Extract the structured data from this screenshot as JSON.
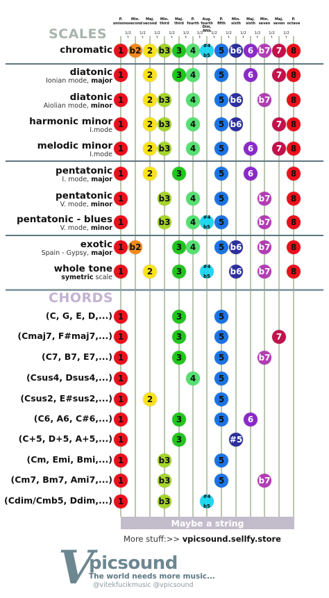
{
  "header": {
    "intervals": [
      [
        "P.",
        "unisono"
      ],
      [
        "Min.",
        "second"
      ],
      [
        "Maj.",
        "second"
      ],
      [
        "Min.",
        "third"
      ],
      [
        "Maj.",
        "third"
      ],
      [
        "P.",
        "fourth"
      ],
      [
        "Aug. fourth",
        "Dim. fifth"
      ],
      [
        "P.",
        "fifth"
      ],
      [
        "Min.",
        "sixth"
      ],
      [
        "Maj.",
        "sixth"
      ],
      [
        "Min.",
        "seven"
      ],
      [
        "Maj.",
        "seven"
      ],
      [
        "P.",
        "octave"
      ]
    ],
    "half_step": "1/2",
    "half_step_unit": "t"
  },
  "sections": {
    "scales": "SCALES",
    "chords": "CHORDS"
  },
  "colors": {
    "1": "#e8111c",
    "b2": "#f28a1c",
    "2": "#f7e21c",
    "b3": "#a4d42a",
    "3": "#22c41e",
    "4": "#56e070",
    "#4": "#23d6f0",
    "5": "#1d73e0",
    "b6": "#2c2f9c",
    "6": "#8a2ac8",
    "b7": "#b23db4",
    "7": "#c1124c",
    "8": "#e8111c",
    "section_scales": "#a8b4ac",
    "section_chords": "#c3b2d2"
  },
  "scales": [
    {
      "name": "chromatic",
      "sub": "",
      "sub_bold": "",
      "notes": [
        "1",
        "b2",
        "2",
        "b3",
        "3",
        "4",
        "#4 b5",
        "5",
        "b6",
        "6",
        "b7",
        "7",
        "8"
      ]
    },
    {
      "name": "diatonic",
      "sub": "Ionian mode, ",
      "sub_bold": "major",
      "notes": [
        "1",
        "",
        "2",
        "",
        "3",
        "4",
        "",
        "5",
        "",
        "6",
        "",
        "7",
        "8"
      ]
    },
    {
      "name": "diatonic",
      "sub": "Aiolian mode, ",
      "sub_bold": "minor",
      "notes": [
        "1",
        "",
        "2",
        "b3",
        "",
        "4",
        "",
        "5",
        "b6",
        "",
        "b7",
        "",
        "8"
      ]
    },
    {
      "name": "harmonic minor",
      "sub": "I.mode",
      "sub_bold": "",
      "notes": [
        "1",
        "",
        "2",
        "b3",
        "",
        "4",
        "",
        "5",
        "b6",
        "",
        "",
        "7",
        "8"
      ]
    },
    {
      "name": "melodic minor",
      "sub": "I.mode",
      "sub_bold": "",
      "notes": [
        "1",
        "",
        "2",
        "b3",
        "",
        "4",
        "",
        "5",
        "",
        "6",
        "",
        "7",
        "8"
      ]
    },
    {
      "name": "pentatonic",
      "sub": "I. mode, ",
      "sub_bold": "major",
      "notes": [
        "1",
        "",
        "2",
        "",
        "3",
        "",
        "",
        "5",
        "",
        "6",
        "",
        "",
        "8"
      ]
    },
    {
      "name": "pentatonic",
      "sub": "V. mode, ",
      "sub_bold": "minor",
      "notes": [
        "1",
        "",
        "",
        "b3",
        "",
        "4",
        "",
        "5",
        "",
        "",
        "b7",
        "",
        "8"
      ]
    },
    {
      "name": "pentatonic - blues",
      "sub": "V. mode, ",
      "sub_bold": "minor",
      "notes": [
        "1",
        "",
        "",
        "b3",
        "",
        "4",
        "#4 b5",
        "5",
        "",
        "",
        "b7",
        "",
        "8"
      ]
    },
    {
      "name": "exotic",
      "sub": "Spain - Gypsy, ",
      "sub_bold": "major",
      "notes": [
        "1",
        "b2",
        "",
        "",
        "3",
        "4",
        "",
        "5",
        "b6",
        "",
        "b7",
        "",
        "8"
      ]
    },
    {
      "name": "whole tone",
      "sub": " scale",
      "sub_bold": "symetric",
      "sub_bold_first": true,
      "notes": [
        "1",
        "",
        "2",
        "",
        "3",
        "",
        "#4 b5",
        "",
        "b6",
        "",
        "b7",
        "",
        "8"
      ]
    }
  ],
  "chords": [
    {
      "name": "(C, G, E, D,...)",
      "notes": [
        "1",
        "",
        "",
        "",
        "3",
        "",
        "",
        "5",
        "",
        "",
        "",
        "",
        ""
      ]
    },
    {
      "name": "(Cmaj7, F#maj7,...)",
      "notes": [
        "1",
        "",
        "",
        "",
        "3",
        "",
        "",
        "5",
        "",
        "",
        "",
        "7",
        ""
      ]
    },
    {
      "name": "(C7, B7, E7,...)",
      "notes": [
        "1",
        "",
        "",
        "",
        "3",
        "",
        "",
        "5",
        "",
        "",
        "b7",
        "",
        ""
      ]
    },
    {
      "name": "(Csus4, Dsus4,...)",
      "notes": [
        "1",
        "",
        "",
        "",
        "",
        "4",
        "",
        "5",
        "",
        "",
        "",
        "",
        ""
      ]
    },
    {
      "name": "(Csus2, E#sus2,...)",
      "notes": [
        "1",
        "",
        "2",
        "",
        "",
        "",
        "",
        "5",
        "",
        "",
        "",
        "",
        ""
      ]
    },
    {
      "name": "(C6, A6, C#6,...)",
      "notes": [
        "1",
        "",
        "",
        "",
        "3",
        "",
        "",
        "5",
        "",
        "6",
        "",
        "",
        ""
      ]
    },
    {
      "name": "(C+5, D+5, A+5,...)",
      "notes": [
        "1",
        "",
        "",
        "",
        "3",
        "",
        "",
        "",
        "#5",
        "",
        "",
        "",
        ""
      ]
    },
    {
      "name": "(Cm, Emi, Bmi,...)",
      "notes": [
        "1",
        "",
        "",
        "b3",
        "",
        "",
        "",
        "5",
        "",
        "",
        "",
        "",
        ""
      ]
    },
    {
      "name": "(Cm7, Bm7, Ami7,...)",
      "notes": [
        "1",
        "",
        "",
        "b3",
        "",
        "",
        "",
        "5",
        "",
        "",
        "b7",
        "",
        ""
      ]
    },
    {
      "name": "(Cdim/Cmb5, Ddim,...)",
      "notes": [
        "1",
        "",
        "",
        "b3",
        "",
        "",
        "#4 b5",
        "",
        "",
        "",
        "",
        "",
        ""
      ]
    }
  ],
  "footer": {
    "string_label": "Maybe a string",
    "more_prefix": "More stuff:>> ",
    "more_link": "vpicsound.sellfy.store",
    "logo_letter": "V",
    "brand": "picsound",
    "slogan": "The world needs more music...",
    "handles": "@vitekfucikmusic @vpicsound"
  }
}
